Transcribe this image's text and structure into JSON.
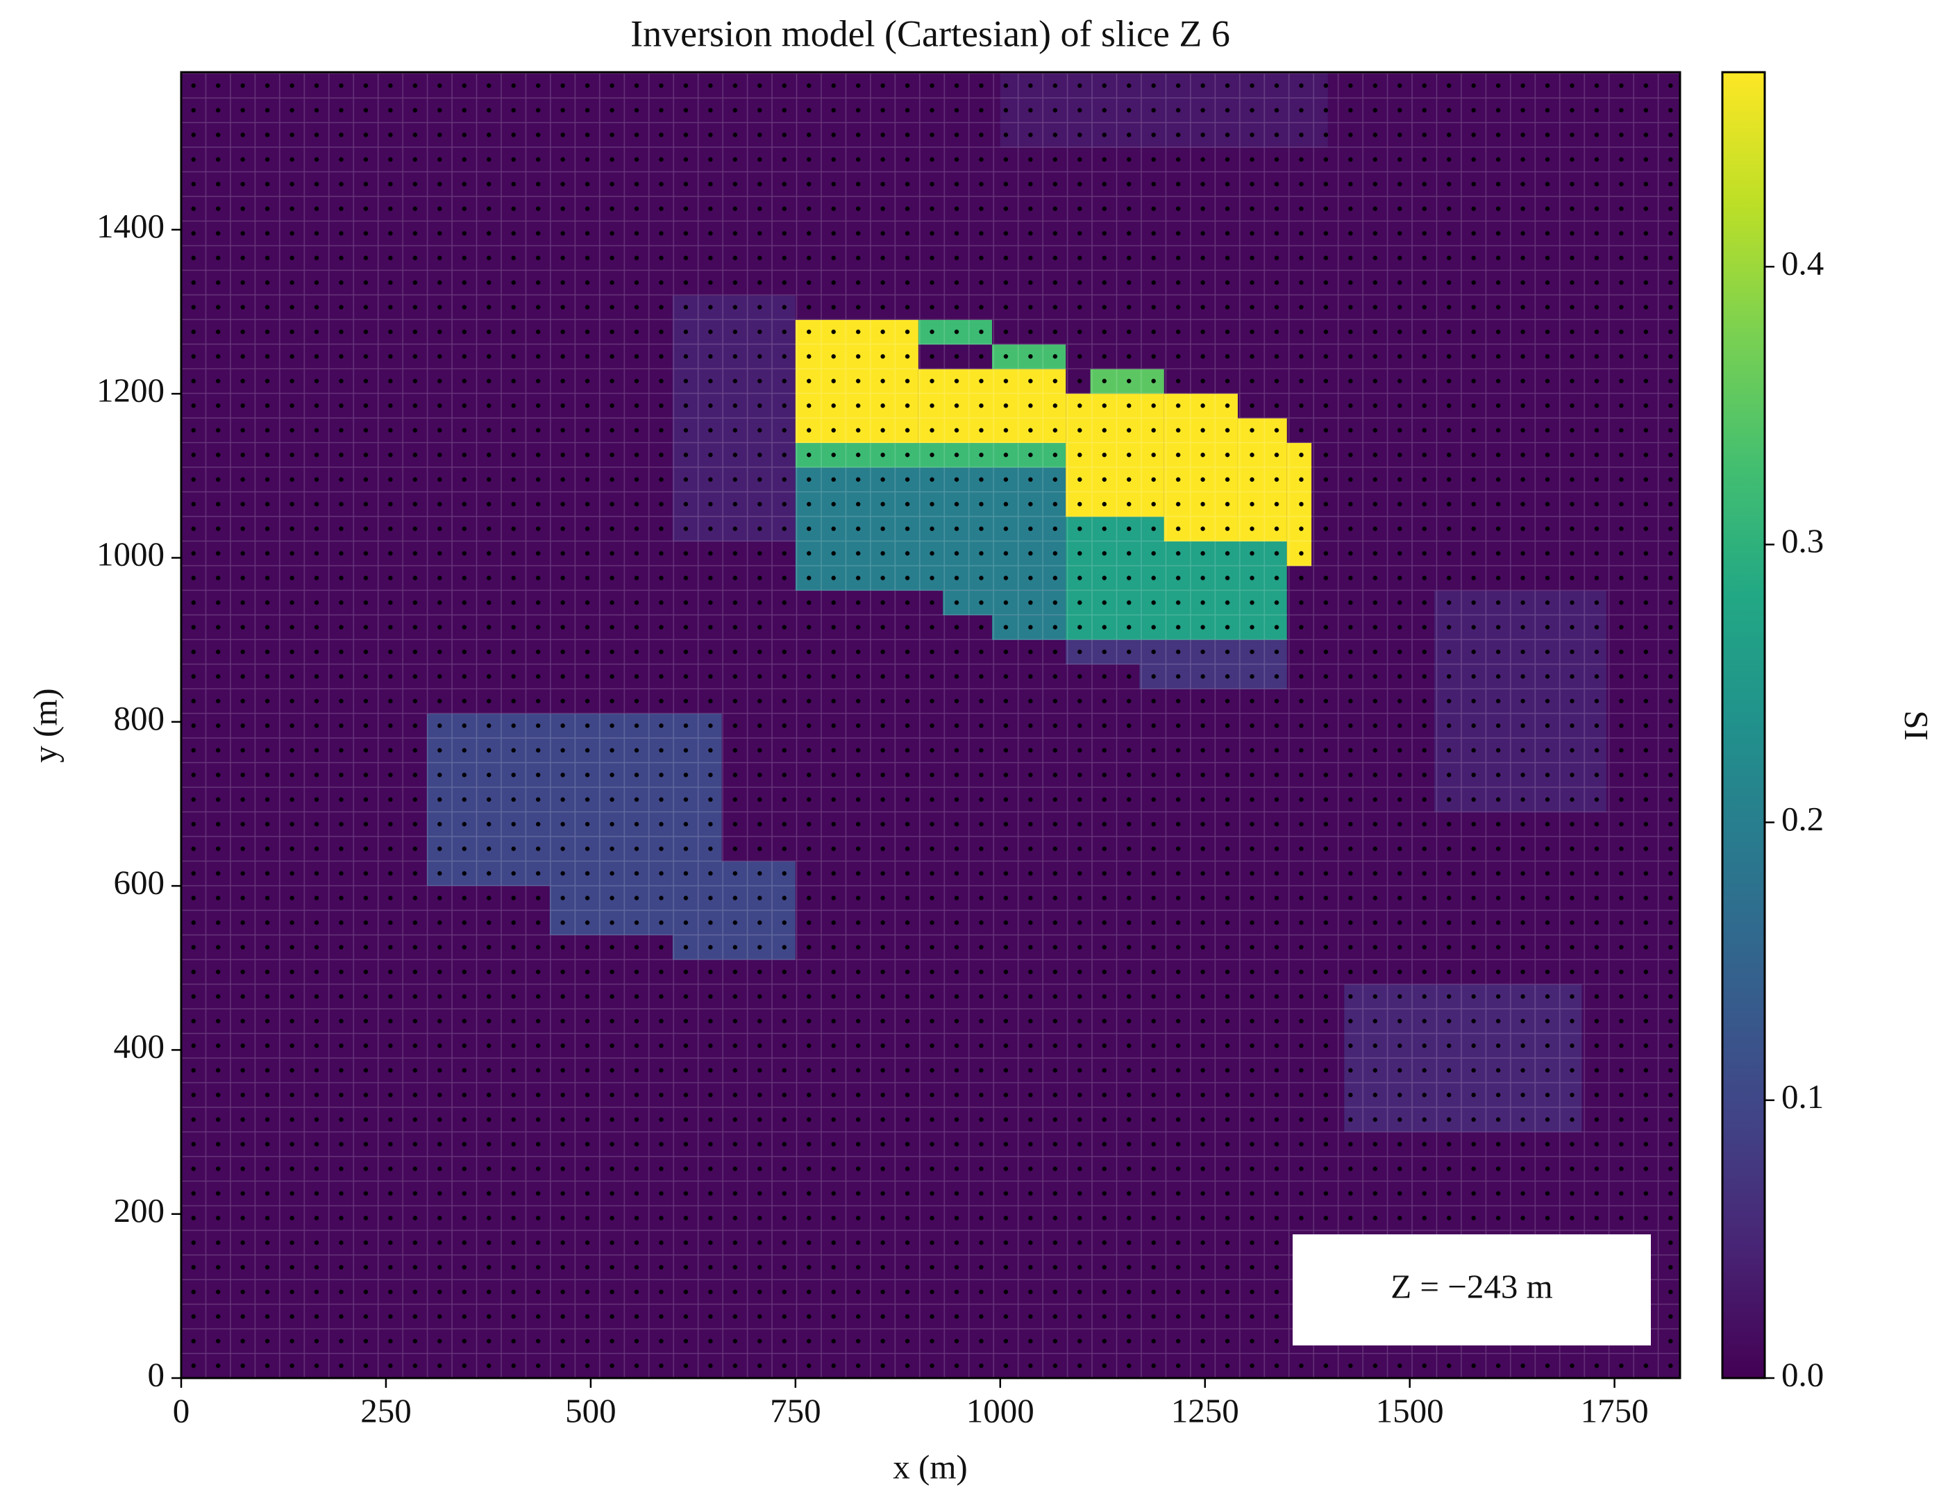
{
  "chart_data": {
    "type": "heatmap",
    "title": "Inversion model (Cartesian) of slice Z 6",
    "x_label": "x (m)",
    "y_label": "y (m)",
    "colorbar_label": "SI",
    "annotation": "Z = −243 m",
    "colormap": "viridis",
    "xlim": [
      0,
      1830
    ],
    "ylim": [
      0,
      1592
    ],
    "xticks": [
      0,
      250,
      500,
      750,
      1000,
      1250,
      1500,
      1750
    ],
    "yticks": [
      0,
      200,
      400,
      600,
      800,
      1000,
      1200,
      1400
    ],
    "clim": [
      0,
      0.47
    ],
    "cticks": [
      {
        "value": 0,
        "label": "0.0"
      },
      0.1,
      0.2,
      0.3,
      0.4
    ],
    "cells": [
      {
        "x": [
          0,
          1830
        ],
        "y": [
          0,
          1592
        ],
        "value": 0.01
      },
      {
        "x": [
          1000,
          1400
        ],
        "y": [
          1500,
          1592
        ],
        "value": 0.03
      },
      {
        "x": [
          600,
          750
        ],
        "y": [
          1020,
          1320
        ],
        "value": 0.04
      },
      {
        "x": [
          1530,
          1740
        ],
        "y": [
          690,
          960
        ],
        "value": 0.04
      },
      {
        "x": [
          1420,
          1710
        ],
        "y": [
          300,
          480
        ],
        "value": 0.05
      },
      {
        "x": [
          300,
          660
        ],
        "y": [
          600,
          810
        ],
        "value": 0.1
      },
      {
        "x": [
          450,
          750
        ],
        "y": [
          540,
          630
        ],
        "value": 0.1
      },
      {
        "x": [
          600,
          750
        ],
        "y": [
          510,
          540
        ],
        "value": 0.1
      },
      {
        "x": [
          1080,
          1200
        ],
        "y": [
          870,
          900
        ],
        "value": 0.07
      },
      {
        "x": [
          1170,
          1350
        ],
        "y": [
          840,
          900
        ],
        "value": 0.07
      },
      {
        "x": [
          750,
          1080
        ],
        "y": [
          960,
          1110
        ],
        "value": 0.2
      },
      {
        "x": [
          930,
          1080
        ],
        "y": [
          930,
          960
        ],
        "value": 0.2
      },
      {
        "x": [
          990,
          1080
        ],
        "y": [
          900,
          930
        ],
        "value": 0.2
      },
      {
        "x": [
          1080,
          1350
        ],
        "y": [
          900,
          1050
        ],
        "value": 0.27
      },
      {
        "x": [
          750,
          1080
        ],
        "y": [
          1110,
          1140
        ],
        "value": 0.32
      },
      {
        "x": [
          900,
          990
        ],
        "y": [
          1260,
          1290
        ],
        "value": 0.32
      },
      {
        "x": [
          990,
          1080
        ],
        "y": [
          1230,
          1260
        ],
        "value": 0.33
      },
      {
        "x": [
          1110,
          1200
        ],
        "y": [
          1200,
          1230
        ],
        "value": 0.35
      },
      {
        "x": [
          750,
          900
        ],
        "y": [
          1140,
          1290
        ],
        "value": 0.47
      },
      {
        "x": [
          900,
          1080
        ],
        "y": [
          1140,
          1230
        ],
        "value": 0.47
      },
      {
        "x": [
          1080,
          1200
        ],
        "y": [
          1050,
          1200
        ],
        "value": 0.47
      },
      {
        "x": [
          1200,
          1290
        ],
        "y": [
          1020,
          1200
        ],
        "value": 0.47
      },
      {
        "x": [
          1290,
          1350
        ],
        "y": [
          1020,
          1170
        ],
        "value": 0.47
      },
      {
        "x": [
          1350,
          1380
        ],
        "y": [
          990,
          1140
        ],
        "value": 0.47
      }
    ]
  }
}
